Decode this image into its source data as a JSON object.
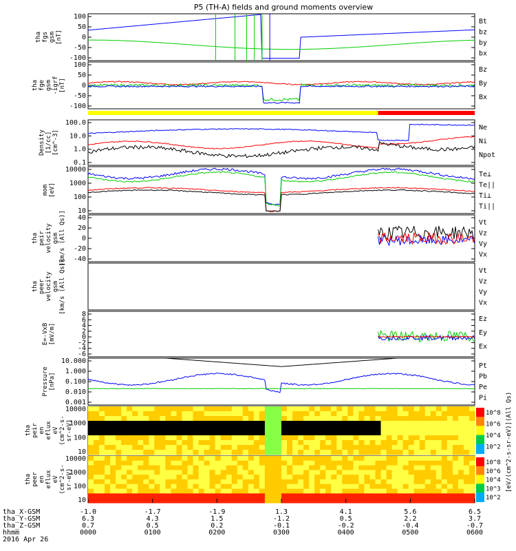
{
  "title": "P5 (TH-A) fields and ground moments overview",
  "colors": {
    "bt": "#000000",
    "red": "#ff0000",
    "green": "#00cc00",
    "blue": "#0000ff"
  },
  "chart_data": [
    {
      "type": "line",
      "panel": "fgs",
      "ylabel": [
        "tha",
        "fgs",
        "gsm",
        "[nT]"
      ],
      "ticks": [
        "100",
        "50",
        "0",
        "-50",
        "-100"
      ],
      "ylim": [
        -100,
        100
      ],
      "legend": [
        {
          "name": "Bt",
          "color": "black"
        },
        {
          "name": "bz",
          "color": "red"
        },
        {
          "name": "by",
          "color": "green"
        },
        {
          "name": "bx",
          "color": "blue"
        }
      ]
    },
    {
      "type": "line",
      "panel": "fge",
      "ylabel": [
        "tha",
        "fge",
        "gsm",
        "-igrf",
        "[nT]"
      ],
      "ticks": [
        "100",
        "50",
        "0",
        "-50",
        "-100"
      ],
      "ylim": [
        -120,
        120
      ],
      "legend": [
        {
          "name": "Bz",
          "color": "red"
        },
        {
          "name": "By",
          "color": "green"
        },
        {
          "name": "Bx",
          "color": "blue"
        }
      ]
    },
    {
      "type": "line",
      "panel": "density",
      "ylabel": [
        "Density",
        "[1/cc]",
        "[cm^-3]"
      ],
      "scale": "log",
      "ticks": [
        "100.0",
        "10.0",
        "1.0",
        "0.1"
      ],
      "legend": [
        {
          "name": "Ne",
          "color": "red"
        },
        {
          "name": "Ni",
          "color": "black"
        },
        {
          "name": "Npot",
          "color": "blue"
        }
      ]
    },
    {
      "type": "line",
      "panel": "temperature",
      "ylabel": [
        "mom",
        "[eV]"
      ],
      "scale": "log",
      "ticks": [
        "10000",
        "1000",
        "100",
        "10"
      ],
      "legend": [
        {
          "name": "Te⊥",
          "color": "red"
        },
        {
          "name": "Te||",
          "color": "black"
        },
        {
          "name": "Ti⊥",
          "color": "blue"
        },
        {
          "name": "Ti||",
          "color": "green"
        }
      ]
    },
    {
      "type": "line",
      "panel": "peir_velocity",
      "ylabel": [
        "tha",
        "peir",
        "velocity",
        "gsm",
        "[km/s (All Qs)]"
      ],
      "ticks": [
        "40",
        "20",
        "0",
        "-20",
        "-40"
      ],
      "ylim": [
        -40,
        40
      ],
      "legend": [
        {
          "name": "Vt",
          "color": "black"
        },
        {
          "name": "Vz",
          "color": "red"
        },
        {
          "name": "Vy",
          "color": "green"
        },
        {
          "name": "Vx",
          "color": "blue"
        }
      ]
    },
    {
      "type": "line",
      "panel": "peer_velocity",
      "ylabel": [
        "tha",
        "peer",
        "velocity",
        "gsm",
        "[km/s (All Qs)]"
      ],
      "ticks": [],
      "legend": [
        {
          "name": "Vt",
          "color": "black"
        },
        {
          "name": "Vz",
          "color": "red"
        },
        {
          "name": "Vy",
          "color": "green"
        },
        {
          "name": "Vx",
          "color": "blue"
        }
      ]
    },
    {
      "type": "line",
      "panel": "efield",
      "ylabel": [
        "E=-VxB",
        "[mV/m]"
      ],
      "ticks": [
        "8",
        "6",
        "4",
        "2",
        "0",
        "-2",
        "-4",
        "-6"
      ],
      "ylim": [
        -6,
        8
      ],
      "legend": [
        {
          "name": "Ez",
          "color": "red"
        },
        {
          "name": "Ey",
          "color": "green"
        },
        {
          "name": "Ex",
          "color": "blue"
        }
      ]
    },
    {
      "type": "line",
      "panel": "pressure",
      "ylabel": [
        "Pressure",
        "[nPa]"
      ],
      "scale": "log",
      "ticks": [
        "10.000",
        "1.000",
        "0.100",
        "0.010",
        "0.001"
      ],
      "legend": [
        {
          "name": "Pt",
          "color": "black"
        },
        {
          "name": "Pb",
          "color": "red"
        },
        {
          "name": "Pe",
          "color": "green"
        },
        {
          "name": "Pi",
          "color": "blue"
        }
      ]
    },
    {
      "type": "heatmap",
      "panel": "peir_spec",
      "ylabel": [
        "tha",
        "peir",
        "en",
        "eflux",
        "eV",
        "(cm^2-s-",
        "sr-eV)"
      ],
      "scale": "log",
      "ticks": [
        "10000",
        "1000",
        "100",
        "10"
      ],
      "colorbar": {
        "ticks": [
          "10^8",
          "10^6",
          "10^4",
          "10^2"
        ],
        "label": "[eV/(cm^2-s-sr-eV)](All Qs)"
      }
    },
    {
      "type": "heatmap",
      "panel": "peer_spec",
      "ylabel": [
        "tha",
        "peer",
        "en",
        "eflux",
        "eV",
        "(cm^2-s-",
        "sr-eV)"
      ],
      "scale": "log",
      "ticks": [
        "10000",
        "1000",
        "100",
        "10"
      ],
      "colorbar": {
        "ticks": [
          "10^8",
          "10^6",
          "10^4",
          "10^3",
          "10^2"
        ]
      }
    }
  ],
  "x_axis": {
    "rows": [
      {
        "label": "tha_X-GSM",
        "values": [
          "-1.0",
          "-1.7",
          "-1.9",
          "1.3",
          "4.1",
          "5.6",
          "6.5"
        ]
      },
      {
        "label": "tha_Y-GSM",
        "values": [
          "6.3",
          "4.3",
          "1.5",
          "-1.2",
          "0.5",
          "2.2",
          "3.7"
        ]
      },
      {
        "label": "tha_Z-GSM",
        "values": [
          "0.7",
          "0.5",
          "0.2",
          "-0.1",
          "-0.2",
          "-0.4",
          "-0.7"
        ]
      },
      {
        "label": "hhmm",
        "values": [
          "0000",
          "0100",
          "0200",
          "0300",
          "0400",
          "0500",
          "0600"
        ]
      }
    ],
    "date": "2016 Apr 26"
  }
}
